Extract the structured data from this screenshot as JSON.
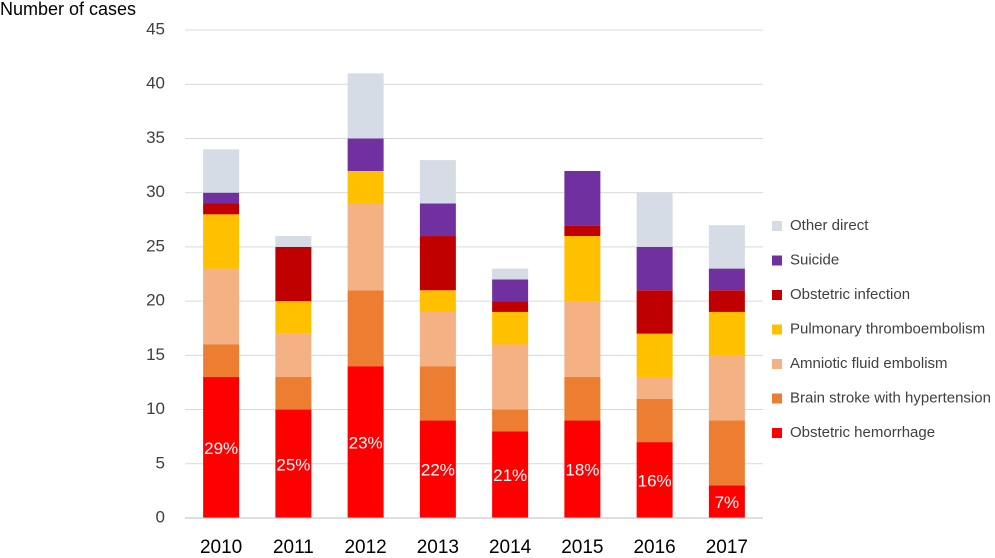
{
  "chart_data": {
    "type": "stacked_bar",
    "y_axis_label": "Number of cases",
    "categories": [
      "2010",
      "2011",
      "2012",
      "2013",
      "2014",
      "2015",
      "2016",
      "2017"
    ],
    "series": [
      {
        "name": "Obstetric hemorrhage",
        "color": "#ff0000",
        "values": [
          13,
          10,
          14,
          9,
          8,
          9,
          7,
          3
        ],
        "percent_labels": [
          "29%",
          "25%",
          "23%",
          "22%",
          "21%",
          "18%",
          "16%",
          "7%"
        ]
      },
      {
        "name": "Brain stroke with hypertension",
        "color": "#ed7d31",
        "values": [
          3,
          3,
          7,
          5,
          2,
          4,
          4,
          6
        ]
      },
      {
        "name": "Amniotic fluid embolism",
        "color": "#f4b183",
        "values": [
          7,
          4,
          8,
          5,
          6,
          7,
          2,
          6
        ]
      },
      {
        "name": "Pulmonary thromboembolism",
        "color": "#ffc000",
        "values": [
          5,
          3,
          3,
          2,
          3,
          6,
          4,
          4
        ]
      },
      {
        "name": "Obstetric infection",
        "color": "#c00000",
        "values": [
          1,
          5,
          0,
          5,
          1,
          1,
          4,
          2
        ]
      },
      {
        "name": "Suicide",
        "color": "#7030a0",
        "values": [
          1,
          0,
          3,
          3,
          2,
          5,
          4,
          2
        ]
      },
      {
        "name": "Other direct",
        "color": "#d6dce5",
        "values": [
          4,
          1,
          6,
          4,
          1,
          0,
          5,
          4
        ]
      }
    ],
    "ylim": [
      0,
      45
    ],
    "yticks": [
      0,
      5,
      10,
      15,
      20,
      25,
      30,
      35,
      40,
      45
    ],
    "grid": true,
    "legend": "right"
  }
}
